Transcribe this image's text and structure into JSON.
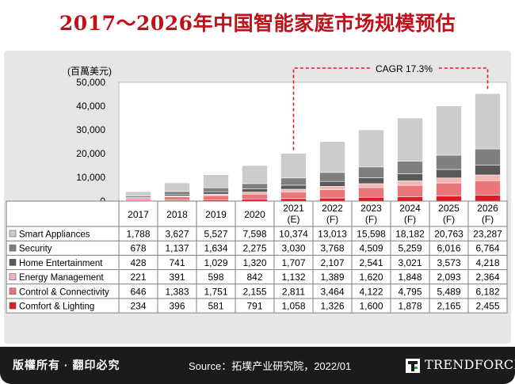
{
  "title": "2017～2026年中国智能家庭市场规模预估",
  "footer": {
    "rights": "版權所有 · 翻印必究",
    "source": "Source：拓墣产业研究院，2022/01",
    "brand": "TRENDFORCE"
  },
  "chart_data": {
    "type": "bar",
    "stacked": true,
    "ylabel": "(百萬美元)",
    "ylim": [
      0,
      50000
    ],
    "yticks": [
      "50,000",
      "40,000",
      "30,000",
      "20,000",
      "10,000",
      "0"
    ],
    "categories": [
      [
        "2017"
      ],
      [
        "2018"
      ],
      [
        "2019"
      ],
      [
        "2020"
      ],
      [
        "2021",
        "(E)"
      ],
      [
        "2022",
        "(F)"
      ],
      [
        "2023",
        "(F)"
      ],
      [
        "2024",
        "(F)"
      ],
      [
        "2025",
        "(F)"
      ],
      [
        "2026",
        "(F)"
      ]
    ],
    "annotation": "CAGR 17.3%",
    "series": [
      {
        "name": "Smart Appliances",
        "color": "#cccccc",
        "values": [
          1788,
          3627,
          5527,
          7598,
          10374,
          13013,
          15598,
          18182,
          20763,
          23287
        ],
        "labels": [
          "1,788",
          "3,627",
          "5,527",
          "7,598",
          "10,374",
          "13,013",
          "15,598",
          "18,182",
          "20,763",
          "23,287"
        ]
      },
      {
        "name": "Security",
        "color": "#7f7f7f",
        "values": [
          678,
          1137,
          1634,
          2275,
          3030,
          3768,
          4509,
          5259,
          6016,
          6764
        ],
        "labels": [
          "678",
          "1,137",
          "1,634",
          "2,275",
          "3,030",
          "3,768",
          "4,509",
          "5,259",
          "6,016",
          "6,764"
        ]
      },
      {
        "name": "Home Entertainment",
        "color": "#595959",
        "values": [
          428,
          741,
          1029,
          1320,
          1707,
          2107,
          2541,
          3021,
          3573,
          4218
        ],
        "labels": [
          "428",
          "741",
          "1,029",
          "1,320",
          "1,707",
          "2,107",
          "2,541",
          "3,021",
          "3,573",
          "4,218"
        ]
      },
      {
        "name": "Energy Management",
        "color": "#f4b6b0",
        "values": [
          221,
          391,
          598,
          842,
          1132,
          1389,
          1620,
          1848,
          2093,
          2364
        ],
        "labels": [
          "221",
          "391",
          "598",
          "842",
          "1,132",
          "1,389",
          "1,620",
          "1,848",
          "2,093",
          "2,364"
        ]
      },
      {
        "name": "Control & Connectivity",
        "color": "#e8767a",
        "values": [
          646,
          1383,
          1751,
          2155,
          2811,
          3464,
          4122,
          4795,
          5489,
          6182
        ],
        "labels": [
          "646",
          "1,383",
          "1,751",
          "2,155",
          "2,811",
          "3,464",
          "4,122",
          "4,795",
          "5,489",
          "6,182"
        ]
      },
      {
        "name": "Comfort & Lighting",
        "color": "#e01a22",
        "values": [
          234,
          396,
          581,
          791,
          1058,
          1326,
          1600,
          1878,
          2165,
          2455
        ],
        "labels": [
          "234",
          "396",
          "581",
          "791",
          "1,058",
          "1,326",
          "1,600",
          "1,878",
          "2,165",
          "2,455"
        ]
      }
    ]
  }
}
